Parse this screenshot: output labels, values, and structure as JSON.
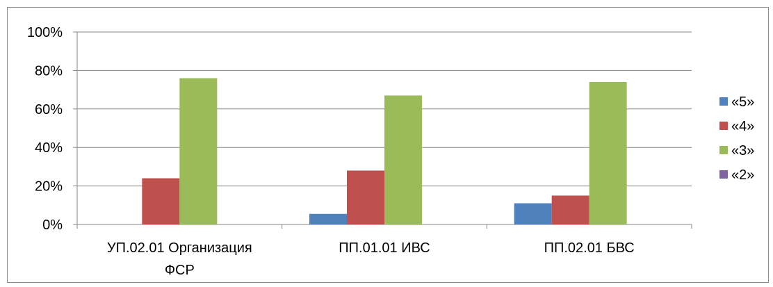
{
  "chart_data": {
    "type": "bar",
    "title": "",
    "xlabel": "",
    "ylabel": "",
    "ylim": [
      0,
      100
    ],
    "y_ticks": [
      "0%",
      "20%",
      "40%",
      "60%",
      "80%",
      "100%"
    ],
    "y_tick_values": [
      0,
      20,
      40,
      60,
      80,
      100
    ],
    "grid": true,
    "legend_position": "right",
    "categories": [
      [
        "УП.02.01 Организация",
        "ФСР"
      ],
      [
        "ПП.01.01 ИВС"
      ],
      [
        "ПП.02.01 БВС"
      ]
    ],
    "series": [
      {
        "name": "«5»",
        "color": "#4f81bd",
        "values": [
          0,
          5.5,
          11
        ]
      },
      {
        "name": "«4»",
        "color": "#c0504d",
        "values": [
          24,
          28,
          15
        ]
      },
      {
        "name": "«3»",
        "color": "#9bbb59",
        "values": [
          76,
          67,
          74
        ]
      },
      {
        "name": "«2»",
        "color": "#8064a2",
        "values": [
          0,
          0,
          0
        ]
      }
    ]
  }
}
